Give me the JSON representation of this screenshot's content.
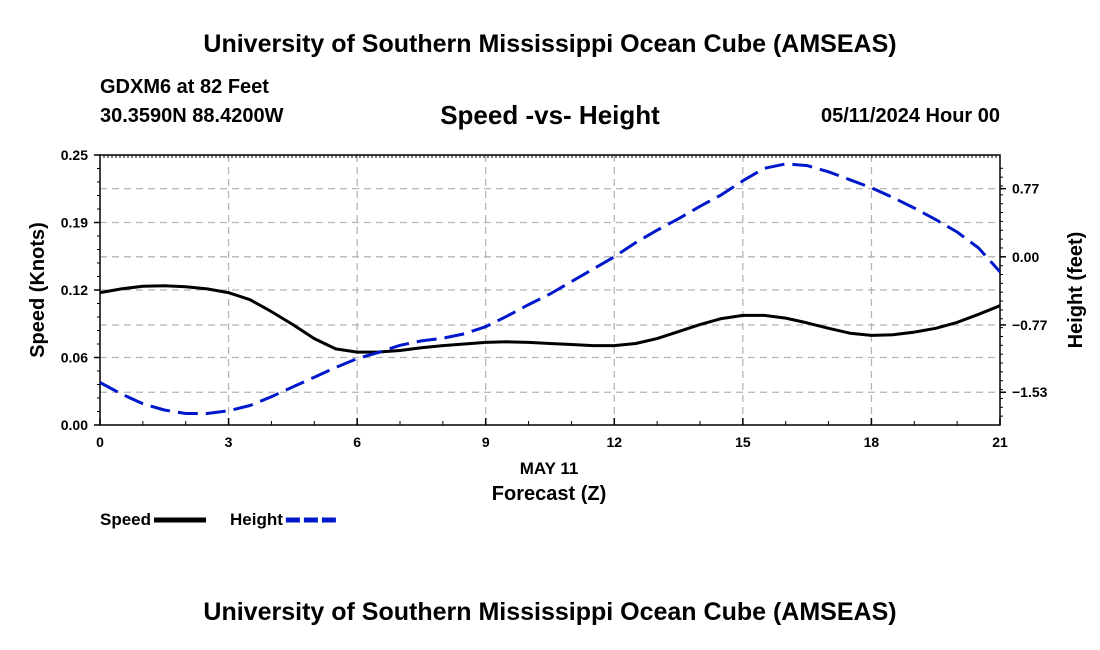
{
  "header": {
    "title": "University of Southern Mississippi Ocean Cube (AMSEAS)",
    "station": "GDXM6 at 82 Feet",
    "coords": "30.3590N  88.4200W",
    "subtitle": "Speed -vs- Height",
    "datetime": "05/11/2024 Hour 00"
  },
  "footer": {
    "title": "University of Southern Mississippi Ocean Cube (AMSEAS)"
  },
  "chart_data": {
    "type": "line",
    "title": "Speed -vs- Height",
    "xlabel_date": "MAY 11",
    "xlabel": "Forecast (Z)",
    "ylabel": "Speed (Knots)",
    "y2label": "Height (feet)",
    "xlim": [
      0,
      21
    ],
    "ylim": [
      0,
      0.25
    ],
    "y2lim": [
      -1.9,
      1.15
    ],
    "x_ticks": [
      0,
      3,
      6,
      9,
      12,
      15,
      18,
      21
    ],
    "x_tick_labels": [
      "0",
      "3",
      "6",
      "9",
      "12",
      "15",
      "18",
      "21"
    ],
    "y_ticks": [
      0.0,
      0.0625,
      0.125,
      0.1875,
      0.25
    ],
    "y_tick_labels": [
      "0.00",
      "0.06",
      "0.12",
      "0.19",
      "0.25"
    ],
    "y2_ticks": [
      -1.53,
      -0.77,
      0.0,
      0.77
    ],
    "y2_tick_labels": [
      "−1.53",
      "−0.77",
      "0.00",
      "0.77"
    ],
    "grid": true,
    "series": [
      {
        "name": "Speed",
        "axis": "left",
        "color": "#000000",
        "dash": "solid",
        "x": [
          0,
          0.5,
          1,
          1.5,
          2,
          2.5,
          3,
          3.5,
          4,
          4.5,
          5,
          5.5,
          6,
          6.5,
          7,
          7.5,
          8,
          8.5,
          9,
          9.5,
          10,
          10.5,
          11,
          11.5,
          12,
          12.5,
          13,
          13.5,
          14,
          14.5,
          15,
          15.5,
          16,
          16.5,
          17,
          17.5,
          18,
          18.5,
          19,
          19.5,
          20,
          20.5,
          21
        ],
        "values": [
          0.1225,
          0.126,
          0.1285,
          0.129,
          0.128,
          0.126,
          0.1225,
          0.116,
          0.105,
          0.093,
          0.08,
          0.0705,
          0.0675,
          0.0675,
          0.069,
          0.0715,
          0.0735,
          0.075,
          0.0765,
          0.077,
          0.0765,
          0.0755,
          0.0745,
          0.0735,
          0.0735,
          0.0755,
          0.08,
          0.0865,
          0.093,
          0.0985,
          0.1015,
          0.1015,
          0.099,
          0.0945,
          0.0895,
          0.085,
          0.083,
          0.0835,
          0.086,
          0.0895,
          0.095,
          0.1025,
          0.1105
        ]
      },
      {
        "name": "Height",
        "axis": "right",
        "color": "#0018cc",
        "dash": "dashed",
        "x": [
          0,
          0.5,
          1,
          1.5,
          2,
          2.5,
          3,
          3.5,
          4,
          4.5,
          5,
          5.5,
          6,
          6.5,
          7,
          7.5,
          8,
          8.5,
          9,
          9.5,
          10,
          10.5,
          11,
          11.5,
          12,
          12.5,
          13,
          13.5,
          14,
          14.5,
          15,
          15.5,
          16,
          16.5,
          17,
          17.5,
          18,
          18.5,
          19,
          19.5,
          20,
          20.5,
          21
        ],
        "values": [
          -1.42,
          -1.55,
          -1.66,
          -1.73,
          -1.77,
          -1.77,
          -1.74,
          -1.68,
          -1.58,
          -1.47,
          -1.36,
          -1.25,
          -1.15,
          -1.08,
          -1.0,
          -0.95,
          -0.92,
          -0.87,
          -0.79,
          -0.67,
          -0.54,
          -0.42,
          -0.28,
          -0.14,
          0.0,
          0.16,
          0.3,
          0.43,
          0.57,
          0.7,
          0.86,
          1.0,
          1.05,
          1.03,
          0.96,
          0.87,
          0.78,
          0.67,
          0.55,
          0.42,
          0.28,
          0.1,
          -0.17
        ]
      }
    ],
    "legend": [
      {
        "label": "Speed",
        "color": "#000000",
        "dash": "solid"
      },
      {
        "label": "Height",
        "color": "#0018cc",
        "dash": "dashed"
      }
    ]
  }
}
